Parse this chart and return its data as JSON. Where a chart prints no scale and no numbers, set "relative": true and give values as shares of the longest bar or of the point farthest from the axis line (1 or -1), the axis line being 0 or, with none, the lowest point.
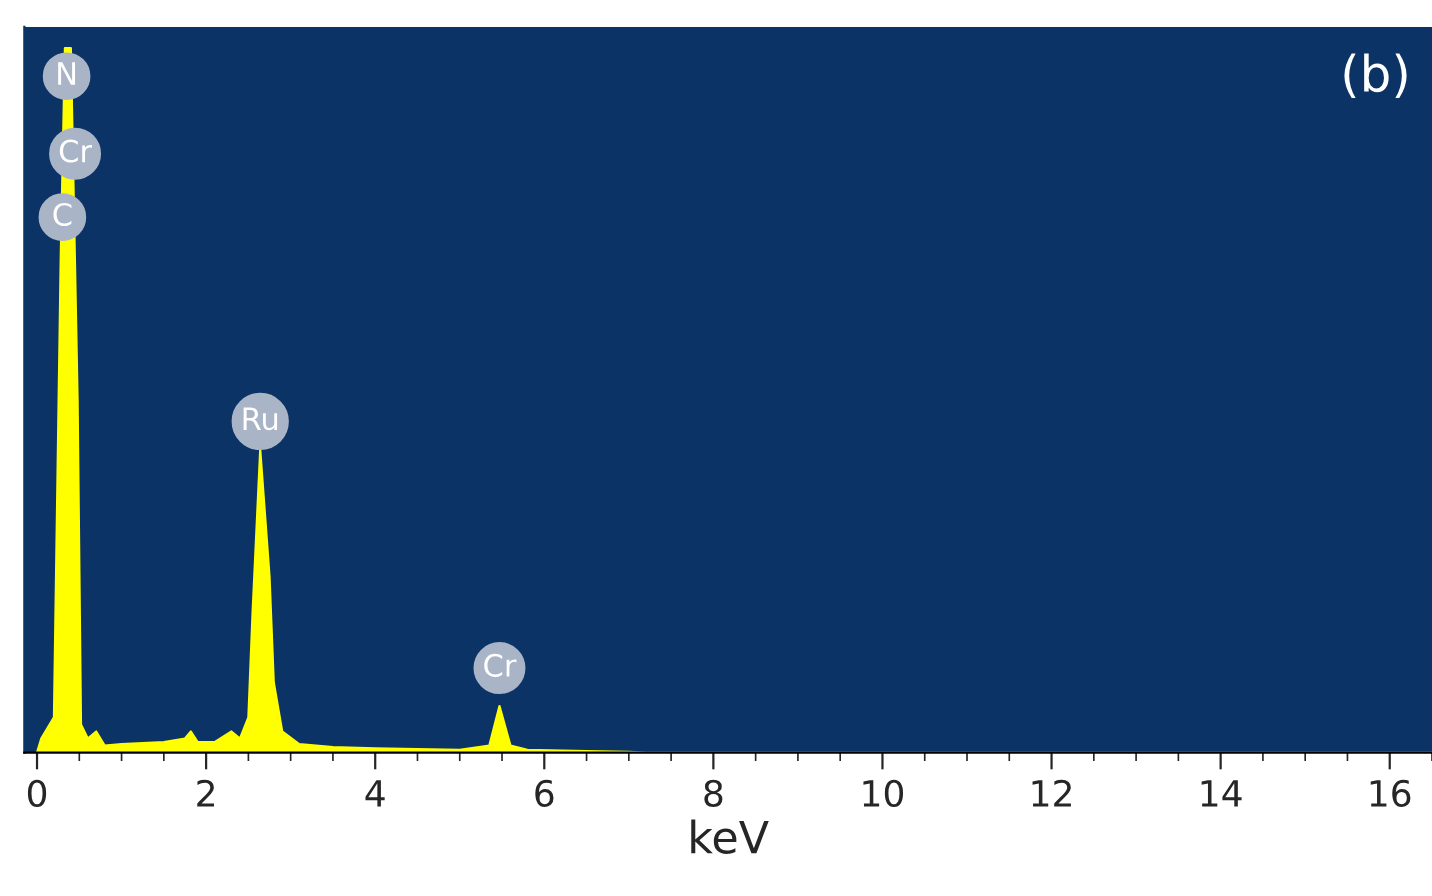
{
  "chart_data": {
    "type": "area",
    "xlabel": "keV",
    "relative": true,
    "grid": false,
    "legend": false,
    "xlim": [
      -0.15,
      16.5
    ],
    "xticks": [
      0,
      2,
      4,
      6,
      8,
      10,
      12,
      14,
      16
    ],
    "series": [
      {
        "color": "#ffff00",
        "x": [
          0.0,
          0.05,
          0.2,
          0.28,
          0.33,
          0.4,
          0.48,
          0.52,
          0.6,
          0.7,
          0.8,
          1.0,
          1.5,
          1.75,
          1.82,
          1.9,
          2.1,
          2.3,
          2.4,
          2.5,
          2.55,
          2.64,
          2.75,
          2.8,
          2.9,
          3.1,
          3.5,
          4.0,
          5.0,
          5.35,
          5.47,
          5.6,
          5.8,
          6.5,
          7.0,
          7.2,
          16.5
        ],
        "values": [
          0,
          0.02,
          0.05,
          0.7,
          1.0,
          1.0,
          0.5,
          0.04,
          0.02,
          0.03,
          0.01,
          0.012,
          0.015,
          0.02,
          0.03,
          0.015,
          0.015,
          0.03,
          0.02,
          0.05,
          0.2,
          0.43,
          0.25,
          0.1,
          0.03,
          0.012,
          0.008,
          0.006,
          0.004,
          0.01,
          0.066,
          0.01,
          0.004,
          0.002,
          0.001,
          0,
          0
        ]
      }
    ],
    "annotations": [
      {
        "text": "N",
        "x": 0.35,
        "y": 0.96
      },
      {
        "text": "Cr",
        "x": 0.45,
        "y": 0.85
      },
      {
        "text": "C",
        "x": 0.3,
        "y": 0.76
      },
      {
        "text": "Ru",
        "x": 2.64,
        "y": 0.47
      },
      {
        "text": "Cr",
        "x": 5.47,
        "y": 0.12
      },
      "(b)"
    ]
  }
}
